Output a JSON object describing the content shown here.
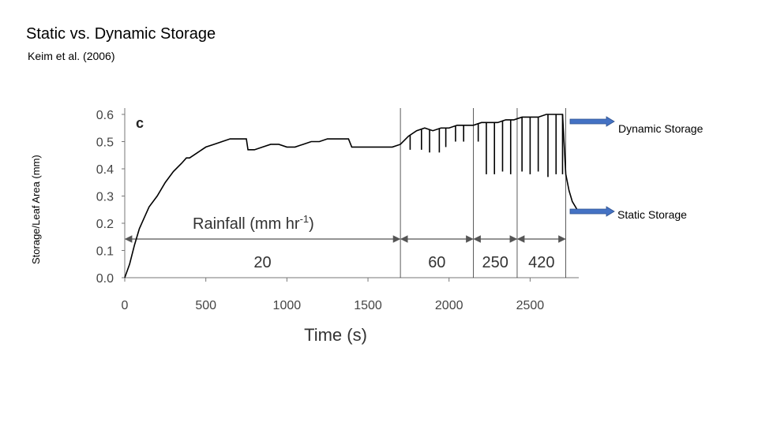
{
  "slide": {
    "title": "Static vs. Dynamic Storage",
    "citation": "Keim et al. (2006)",
    "side_label": "Storage/Leaf Area (mm)"
  },
  "callouts": {
    "dynamic": "Dynamic Storage",
    "static": "Static Storage",
    "arrow_color": "#4472c4"
  },
  "chart_data": {
    "type": "line",
    "panel_letter": "c",
    "xlabel": "Time (s)",
    "ylabel": "",
    "xlim": [
      0,
      2800
    ],
    "ylim": [
      0,
      0.6
    ],
    "x_ticks": [
      0,
      500,
      1000,
      1500,
      2000,
      2500
    ],
    "y_ticks": [
      0.0,
      0.1,
      0.2,
      0.3,
      0.4,
      0.5,
      0.6
    ],
    "y_tick_labels": [
      "0.0",
      "0.1",
      "0.2",
      "0.3",
      "0.4",
      "0.5",
      "0.6"
    ],
    "rainfall_label": "Rainfall (mm hr",
    "rainfall_exp": "-1",
    "rainfall_label_close": ")",
    "rainfall_boundaries": [
      0,
      1700,
      2150,
      2420,
      2720
    ],
    "rainfall_rates": [
      "20",
      "60",
      "250",
      "420"
    ],
    "series": [
      {
        "x": [
          0,
          30,
          60,
          90,
          120,
          150,
          200,
          250,
          300,
          350,
          380,
          400,
          450,
          500,
          550,
          600,
          650,
          700,
          750,
          760,
          800,
          850,
          900,
          950,
          1000,
          1050,
          1100,
          1150,
          1200,
          1250,
          1300,
          1350,
          1380,
          1400,
          1450,
          1500,
          1550,
          1600,
          1650,
          1700,
          1750,
          1800,
          1850,
          1900,
          1950,
          2000,
          2050,
          2100,
          2150,
          2200,
          2250,
          2300,
          2350,
          2400,
          2450,
          2500,
          2550,
          2600,
          2650,
          2700,
          2720,
          2740,
          2760,
          2790
        ],
        "y": [
          0.0,
          0.05,
          0.12,
          0.18,
          0.22,
          0.26,
          0.3,
          0.35,
          0.39,
          0.42,
          0.44,
          0.44,
          0.46,
          0.48,
          0.49,
          0.5,
          0.51,
          0.51,
          0.51,
          0.47,
          0.47,
          0.48,
          0.49,
          0.49,
          0.48,
          0.48,
          0.49,
          0.5,
          0.5,
          0.51,
          0.51,
          0.51,
          0.51,
          0.48,
          0.48,
          0.48,
          0.48,
          0.48,
          0.48,
          0.49,
          0.52,
          0.54,
          0.55,
          0.54,
          0.55,
          0.55,
          0.56,
          0.56,
          0.56,
          0.57,
          0.57,
          0.57,
          0.58,
          0.58,
          0.59,
          0.59,
          0.59,
          0.6,
          0.6,
          0.6,
          0.38,
          0.32,
          0.28,
          0.25
        ]
      }
    ],
    "dips": [
      {
        "x": 1760,
        "y": 0.47
      },
      {
        "x": 1830,
        "y": 0.47
      },
      {
        "x": 1880,
        "y": 0.46
      },
      {
        "x": 1940,
        "y": 0.46
      },
      {
        "x": 1980,
        "y": 0.48
      },
      {
        "x": 2040,
        "y": 0.5
      },
      {
        "x": 2090,
        "y": 0.5
      },
      {
        "x": 2180,
        "y": 0.5
      },
      {
        "x": 2230,
        "y": 0.38
      },
      {
        "x": 2280,
        "y": 0.38
      },
      {
        "x": 2330,
        "y": 0.39
      },
      {
        "x": 2380,
        "y": 0.38
      },
      {
        "x": 2450,
        "y": 0.39
      },
      {
        "x": 2500,
        "y": 0.38
      },
      {
        "x": 2550,
        "y": 0.39
      },
      {
        "x": 2610,
        "y": 0.37
      },
      {
        "x": 2660,
        "y": 0.38
      },
      {
        "x": 2700,
        "y": 0.38
      }
    ]
  }
}
